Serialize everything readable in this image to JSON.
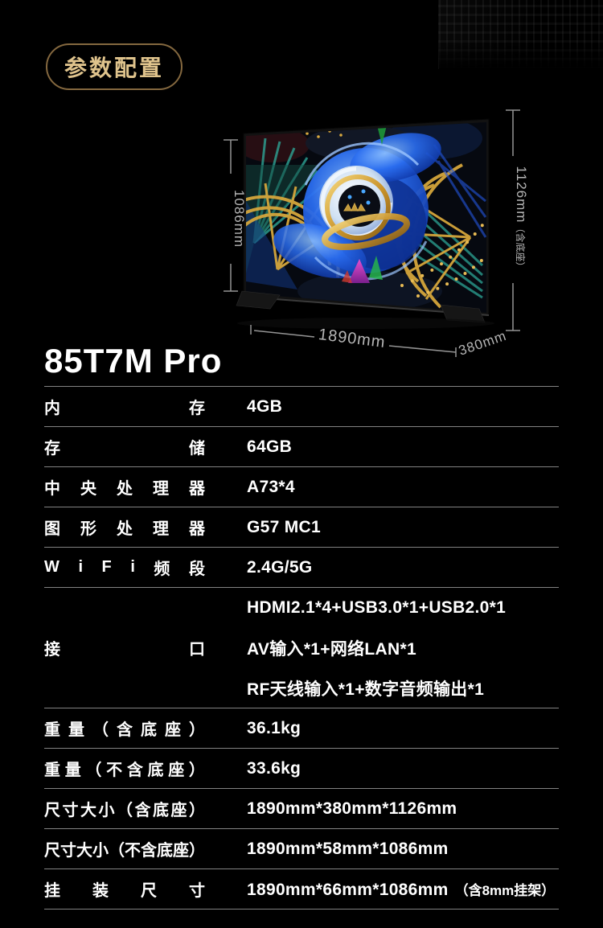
{
  "page": {
    "background": "#000000",
    "accent_gold": "#dfc38c",
    "divider_color": "#828282"
  },
  "badge": {
    "label": "参数配置"
  },
  "product": {
    "title": "85T7M Pro"
  },
  "tv_figure": {
    "dimensions": {
      "panel_height": "1086mm",
      "total_height": "1126mm",
      "total_height_suffix": "（含底座）",
      "width": "1890mm",
      "depth": "380mm"
    }
  },
  "spec_table": {
    "rows": [
      {
        "label": "内存",
        "values": [
          "4GB"
        ]
      },
      {
        "label": "存储",
        "values": [
          "64GB"
        ]
      },
      {
        "label": "中央处理器",
        "values": [
          "A73*4"
        ]
      },
      {
        "label": "图形处理器",
        "values": [
          "G57 MC1"
        ]
      },
      {
        "label": "WiFi频段",
        "values": [
          "2.4G/5G"
        ]
      },
      {
        "label": "接口",
        "values": [
          "HDMI2.1*4+USB3.0*1+USB2.0*1",
          "AV输入*1+网络LAN*1",
          "RF天线输入*1+数字音频输出*1"
        ]
      },
      {
        "label": "重量（含底座）",
        "values": [
          "36.1kg"
        ]
      },
      {
        "label": "重量（不含底座）",
        "values": [
          "33.6kg"
        ]
      },
      {
        "label": "尺寸大小（含底座）",
        "values": [
          "1890mm*380mm*1126mm"
        ]
      },
      {
        "label": "尺寸大小（不含底座）",
        "values": [
          "1890mm*58mm*1086mm"
        ]
      },
      {
        "label": "挂装尺寸",
        "values": [
          "1890mm*66mm*1086mm"
        ],
        "suffix": "（含8mm挂架）"
      }
    ]
  }
}
